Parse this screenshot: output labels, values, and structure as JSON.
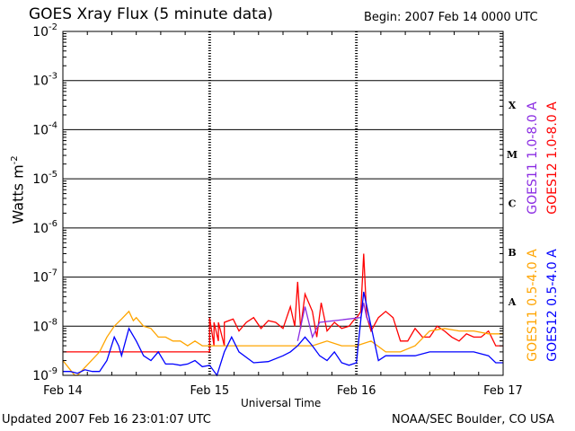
{
  "chart_data": {
    "type": "line",
    "title": "GOES Xray Flux (5 minute data)",
    "begin_label": "Begin:  2007 Feb 14 0000 UTC",
    "xlabel": "Universal Time",
    "ylabel": "Watts m",
    "ylabel_sup": "-2",
    "x_ticks": [
      "Feb 14",
      "Feb 15",
      "Feb 16",
      "Feb 17"
    ],
    "xlim_days": [
      0,
      3
    ],
    "y_scale": "log",
    "ylim": [
      1e-09,
      0.01
    ],
    "y_ticks": [
      {
        "base": "10",
        "exp": "-9"
      },
      {
        "base": "10",
        "exp": "-8"
      },
      {
        "base": "10",
        "exp": "-7"
      },
      {
        "base": "10",
        "exp": "-6"
      },
      {
        "base": "10",
        "exp": "-5"
      },
      {
        "base": "10",
        "exp": "-4"
      },
      {
        "base": "10",
        "exp": "-3"
      },
      {
        "base": "10",
        "exp": "-2"
      }
    ],
    "flare_classes": [
      {
        "label": "A",
        "log": -7.5
      },
      {
        "label": "B",
        "log": -6.5
      },
      {
        "label": "C",
        "log": -5.5
      },
      {
        "label": "M",
        "log": -4.5
      },
      {
        "label": "X",
        "log": -3.5
      }
    ],
    "legend_right_top": [
      {
        "name": "GOES11 1.0-8.0 A",
        "color": "#8a2be2"
      },
      {
        "name": "GOES12 1.0-8.0 A",
        "color": "#ff0000"
      }
    ],
    "legend_right_bottom": [
      {
        "name": "GOES11 0.5-4.0 A",
        "color": "#ffa500"
      },
      {
        "name": "GOES12 0.5-4.0 A",
        "color": "#0000ff"
      }
    ],
    "series": [
      {
        "name": "GOES12 1.0-8.0 A",
        "color": "#ff0000",
        "x": [
          0,
          0.95,
          1.0,
          1.0,
          1.03,
          1.03,
          1.06,
          1.06,
          1.1,
          1.1,
          1.16,
          1.2,
          1.25,
          1.3,
          1.35,
          1.4,
          1.45,
          1.5,
          1.55,
          1.58,
          1.6,
          1.62,
          1.65,
          1.7,
          1.73,
          1.76,
          1.8,
          1.85,
          1.9,
          1.95,
          1.98,
          2.01,
          2.03,
          2.05,
          2.07,
          2.1,
          2.15,
          2.2,
          2.25,
          2.3,
          2.35,
          2.4,
          2.45,
          2.5,
          2.55,
          2.6,
          2.65,
          2.7,
          2.75,
          2.8,
          2.85,
          2.9,
          2.95,
          3.0
        ],
        "y": [
          3e-09,
          3e-09,
          3e-09,
          1.5e-08,
          4e-09,
          1.2e-08,
          5e-09,
          1.2e-08,
          4e-09,
          1.2e-08,
          1.4e-08,
          8e-09,
          1.2e-08,
          1.5e-08,
          9e-09,
          1.3e-08,
          1.2e-08,
          9e-09,
          2.5e-08,
          1e-08,
          8e-08,
          9e-09,
          4.5e-08,
          2e-08,
          6e-09,
          3e-08,
          8e-09,
          1.2e-08,
          9e-09,
          1e-08,
          1.3e-08,
          1.6e-08,
          2e-08,
          3e-07,
          1.6e-08,
          8e-09,
          1.5e-08,
          2e-08,
          1.5e-08,
          5e-09,
          5e-09,
          9e-09,
          6e-09,
          6e-09,
          1e-08,
          8e-09,
          6e-09,
          5e-09,
          7e-09,
          6e-09,
          6e-09,
          8e-09,
          4e-09,
          4e-09
        ]
      },
      {
        "name": "GOES11 1.0-8.0 A",
        "color": "#8a2be2",
        "x": [
          1.6,
          1.65,
          1.7,
          1.75,
          2.03,
          2.05,
          2.07,
          2.1
        ],
        "y": [
          5e-09,
          2.5e-08,
          6e-09,
          1.2e-08,
          1.5e-08,
          3e-08,
          1.5e-08,
          1e-08
        ]
      },
      {
        "name": "GOES11 0.5-4.0 A",
        "color": "#ffa500",
        "x": [
          0,
          0.05,
          0.08,
          0.1,
          0.25,
          0.3,
          0.35,
          0.4,
          0.45,
          0.48,
          0.5,
          0.55,
          0.6,
          0.65,
          0.7,
          0.75,
          0.8,
          0.85,
          0.9,
          0.95,
          1.0,
          1.05,
          1.1,
          1.2,
          1.3,
          1.4,
          1.5,
          1.6,
          1.7,
          1.8,
          1.9,
          2.0,
          2.1,
          2.2,
          2.3,
          2.4,
          2.5,
          2.6,
          2.7,
          2.8,
          2.9,
          3.0
        ],
        "y": [
          2e-09,
          1.3e-09,
          1e-09,
          1e-09,
          3e-09,
          6e-09,
          1e-08,
          1.4e-08,
          2e-08,
          1.3e-08,
          1.5e-08,
          1e-08,
          9e-09,
          6e-09,
          6e-09,
          5e-09,
          5e-09,
          4e-09,
          5e-09,
          4e-09,
          4e-09,
          4e-09,
          4e-09,
          4e-09,
          4e-09,
          4e-09,
          4e-09,
          4e-09,
          4e-09,
          5e-09,
          4e-09,
          4e-09,
          5e-09,
          3e-09,
          3e-09,
          4e-09,
          8e-09,
          9e-09,
          8e-09,
          8e-09,
          7e-09,
          7e-09
        ]
      },
      {
        "name": "GOES12 0.5-4.0 A",
        "color": "#0000ff",
        "x": [
          0,
          0.05,
          0.1,
          0.15,
          0.2,
          0.25,
          0.3,
          0.35,
          0.38,
          0.4,
          0.45,
          0.5,
          0.55,
          0.6,
          0.65,
          0.7,
          0.75,
          0.8,
          0.85,
          0.9,
          0.95,
          1.0,
          1.05,
          1.1,
          1.15,
          1.2,
          1.3,
          1.4,
          1.5,
          1.55,
          1.6,
          1.65,
          1.7,
          1.75,
          1.8,
          1.85,
          1.9,
          1.95,
          2.0,
          2.05,
          2.1,
          2.15,
          2.2,
          2.3,
          2.4,
          2.5,
          2.6,
          2.7,
          2.8,
          2.9,
          2.95,
          3.0
        ],
        "y": [
          1.2e-09,
          1.2e-09,
          1.1e-09,
          1.3e-09,
          1.2e-09,
          1.2e-09,
          2e-09,
          6e-09,
          4e-09,
          2.5e-09,
          9e-09,
          5e-09,
          2.5e-09,
          2e-09,
          3e-09,
          1.7e-09,
          1.7e-09,
          1.6e-09,
          1.7e-09,
          2e-09,
          1.5e-09,
          1.6e-09,
          1e-09,
          3e-09,
          6e-09,
          3e-09,
          1.8e-09,
          1.9e-09,
          2.5e-09,
          3e-09,
          4e-09,
          6e-09,
          4e-09,
          2.5e-09,
          2e-09,
          3e-09,
          1.8e-09,
          1.6e-09,
          1.8e-09,
          5e-08,
          1e-08,
          2e-09,
          2.5e-09,
          2.5e-09,
          2.5e-09,
          3e-09,
          3e-09,
          3e-09,
          3e-09,
          2.5e-09,
          1.8e-09,
          1.8e-09
        ]
      }
    ]
  },
  "footer": {
    "updated": "Updated 2007 Feb 16 23:01:07 UTC",
    "credit": "NOAA/SEC Boulder, CO USA"
  }
}
